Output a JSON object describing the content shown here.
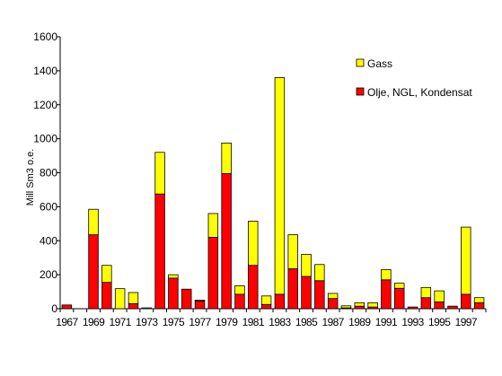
{
  "chart_data": {
    "type": "bar",
    "stacked": true,
    "title": "",
    "xlabel": "",
    "ylabel": "Mill Sm3 o.e.",
    "ylim": [
      0,
      1600
    ],
    "yticks": [
      "0",
      "200",
      "400",
      "600",
      "800",
      "1000",
      "1200",
      "1400",
      "1600"
    ],
    "grid": false,
    "legend_position": "top-right",
    "categories": [
      "1967",
      "1968",
      "1969",
      "1970",
      "1971",
      "1972",
      "1973",
      "1974",
      "1975",
      "1976",
      "1977",
      "1978",
      "1979",
      "1980",
      "1981",
      "1982",
      "1983",
      "1984",
      "1985",
      "1986",
      "1987",
      "1988",
      "1989",
      "1990",
      "1991",
      "1992",
      "1993",
      "1994",
      "1995",
      "1996",
      "1997",
      "1998"
    ],
    "xtick_labels": [
      "1967",
      "1969",
      "1971",
      "1973",
      "1975",
      "1977",
      "1979",
      "1981",
      "1983",
      "1985",
      "1987",
      "1989",
      "1991",
      "1993",
      "1995",
      "1997"
    ],
    "series": [
      {
        "name": "Olje, NGL, Kondensat",
        "color": "#FF0000",
        "values": [
          22,
          0,
          435,
          155,
          0,
          30,
          0,
          675,
          180,
          115,
          45,
          420,
          795,
          85,
          255,
          25,
          85,
          235,
          190,
          165,
          60,
          5,
          15,
          10,
          170,
          120,
          10,
          65,
          40,
          15,
          85,
          35
        ]
      },
      {
        "name": "Gass",
        "color": "#FFFF00",
        "values": [
          0,
          0,
          150,
          100,
          118,
          65,
          5,
          245,
          20,
          0,
          5,
          140,
          180,
          50,
          260,
          50,
          1275,
          200,
          130,
          95,
          30,
          12,
          20,
          25,
          60,
          30,
          0,
          60,
          65,
          0,
          395,
          30
        ]
      }
    ]
  }
}
